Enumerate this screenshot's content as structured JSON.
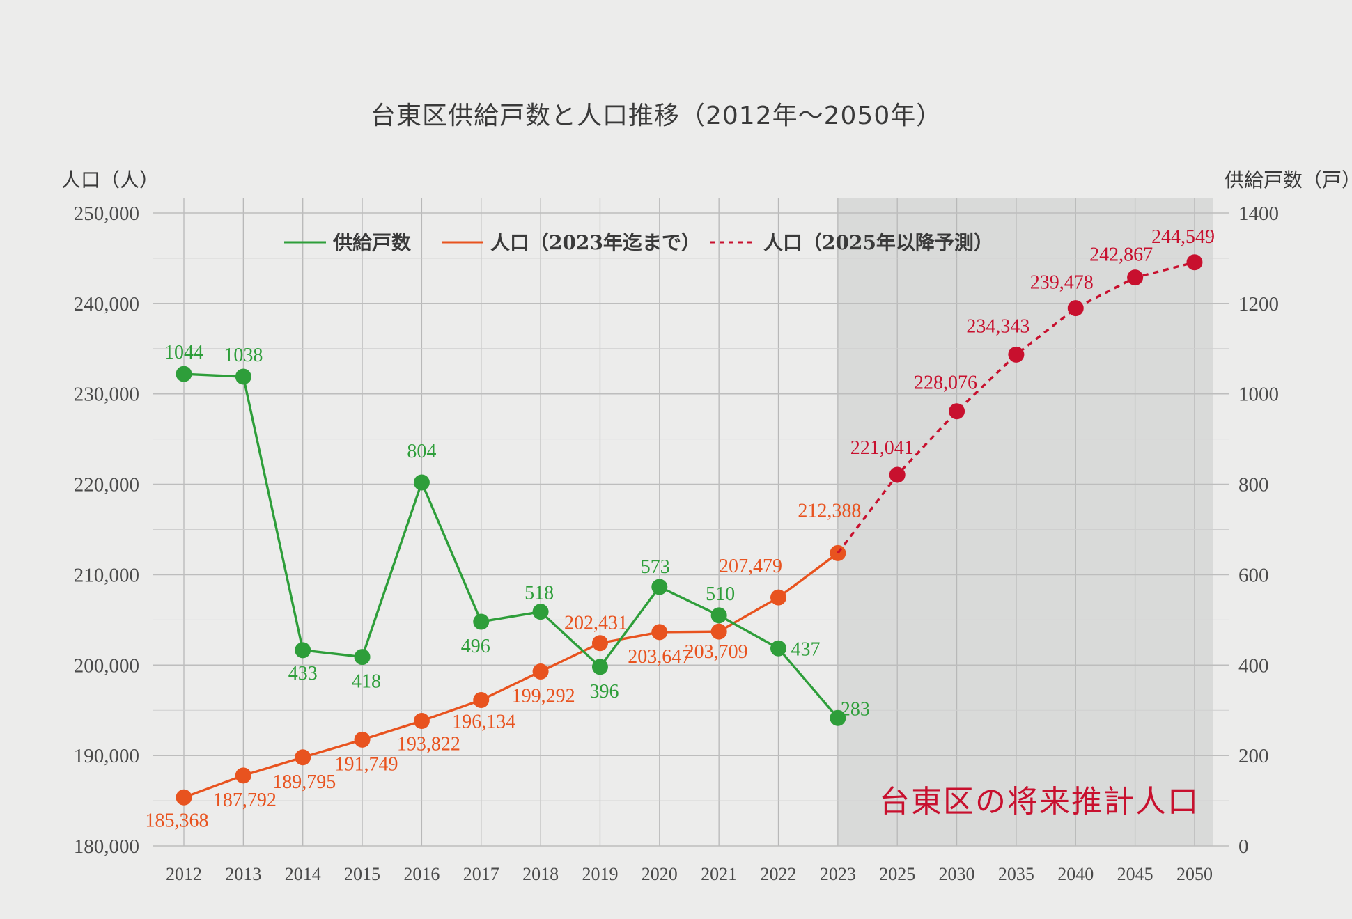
{
  "chart_data": {
    "type": "line",
    "title": "台東区供給戸数と人口推移（2012年～2050年）",
    "y_left_label": "人口（人）",
    "y_right_label": "供給戸数（戸）",
    "y_left_range": [
      180000,
      250000
    ],
    "y_right_range": [
      0,
      1400
    ],
    "y_left_ticks": [
      "180,000",
      "190,000",
      "200,000",
      "210,000",
      "220,000",
      "230,000",
      "240,000",
      "250,000"
    ],
    "y_right_ticks": [
      "0",
      "200",
      "400",
      "600",
      "800",
      "1000",
      "1200",
      "1400"
    ],
    "categories": [
      "2012",
      "2013",
      "2014",
      "2015",
      "2016",
      "2017",
      "2018",
      "2019",
      "2020",
      "2021",
      "2022",
      "2023",
      "2025",
      "2030",
      "2035",
      "2040",
      "2045",
      "2050"
    ],
    "grid": true,
    "legend_position": "top",
    "series": [
      {
        "name": "供給戸数",
        "axis": "right",
        "color": "#2e9e3a",
        "line_style": "solid",
        "x": [
          "2012",
          "2013",
          "2014",
          "2015",
          "2016",
          "2017",
          "2018",
          "2019",
          "2020",
          "2021",
          "2022",
          "2023"
        ],
        "values": [
          1044,
          1038,
          433,
          418,
          804,
          496,
          518,
          396,
          573,
          510,
          437,
          283
        ],
        "labels": [
          "1044",
          "1038",
          "433",
          "418",
          "804",
          "496",
          "518",
          "396",
          "573",
          "510",
          "437",
          "283"
        ]
      },
      {
        "name": "人口（2023年迄まで）",
        "axis": "left",
        "color": "#e8531f",
        "line_style": "solid",
        "x": [
          "2012",
          "2013",
          "2014",
          "2015",
          "2016",
          "2017",
          "2018",
          "2019",
          "2020",
          "2021",
          "2022",
          "2023"
        ],
        "values": [
          185368,
          187792,
          189795,
          191749,
          193822,
          196134,
          199292,
          202431,
          203647,
          203709,
          207479,
          212388
        ],
        "labels": [
          "185,368",
          "187,792",
          "189,795",
          "191,749",
          "193,822",
          "196,134",
          "199,292",
          "202,431",
          "203,647",
          "203,709",
          "207,479",
          "212,388"
        ]
      },
      {
        "name": "人口（2025年以降予測）",
        "axis": "left",
        "color": "#c8102e",
        "line_style": "dashed",
        "x": [
          "2025",
          "2030",
          "2035",
          "2040",
          "2045",
          "2050"
        ],
        "values": [
          221041,
          228076,
          234343,
          239478,
          242867,
          244549
        ],
        "labels": [
          "221,041",
          "228,076",
          "234,343",
          "239,478",
          "242,867",
          "244,549"
        ]
      }
    ],
    "shaded_region": {
      "from": "2023",
      "to": "2050",
      "color": "#d9dad9"
    },
    "annotation": "台東区の将来推計人口"
  }
}
